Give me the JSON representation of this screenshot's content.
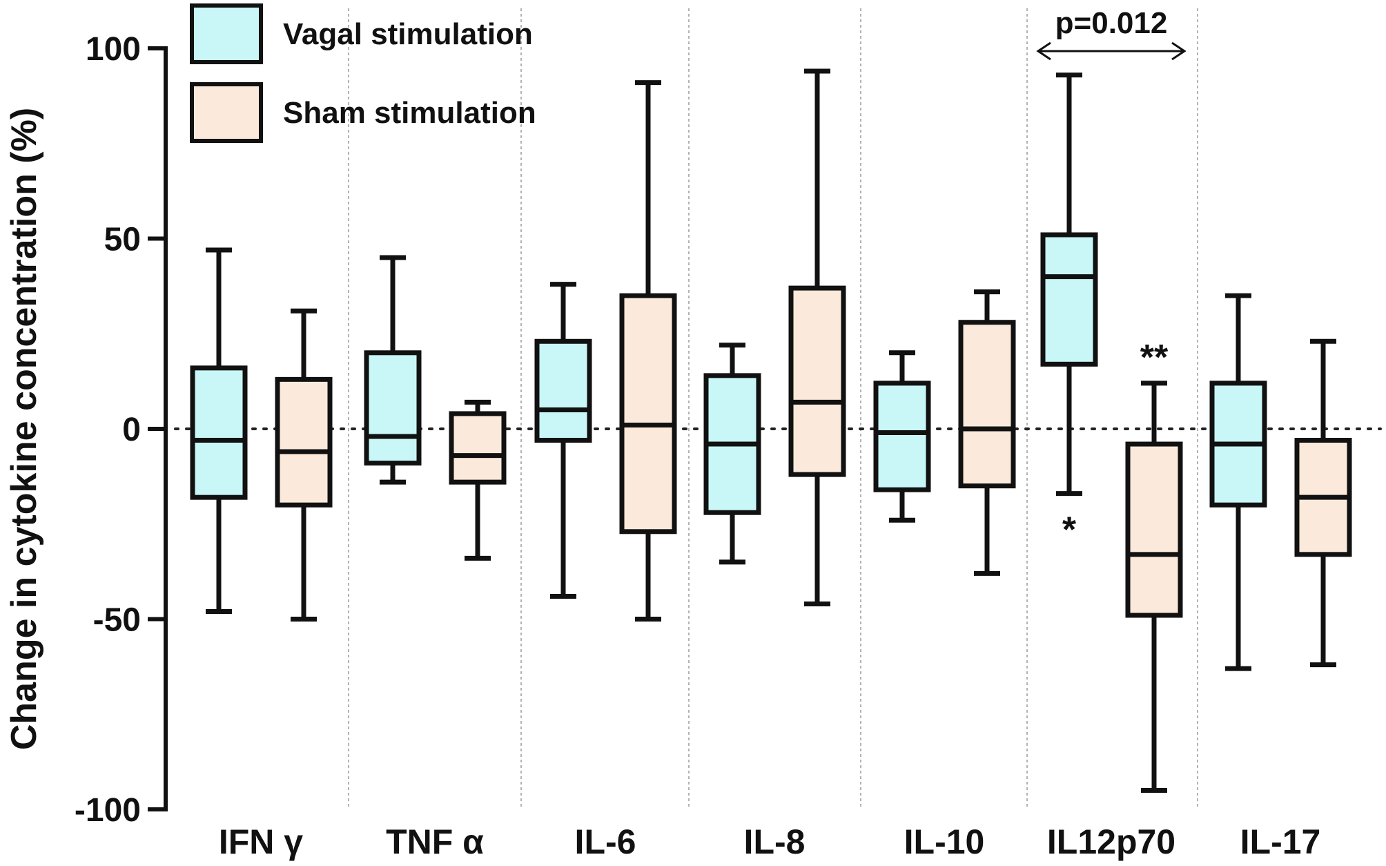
{
  "chart_data": {
    "type": "box",
    "title": "",
    "ylabel": "Change in cytokine concentration (%)",
    "xlabel": "",
    "ylim": [
      -100,
      100
    ],
    "yticks": [
      100,
      50,
      0,
      -50,
      -100
    ],
    "ytick_labels": [
      "100",
      "50",
      "0",
      "-50",
      "-100"
    ],
    "grid": false,
    "reference_line": {
      "y": 0,
      "style": "dotted"
    },
    "legend": {
      "position": "top-left",
      "entries": [
        {
          "name": "Vagal stimulation",
          "color": "#c9f7f7"
        },
        {
          "name": "Sham stimulation",
          "color": "#fbeadc"
        }
      ]
    },
    "categories": [
      "IFN γ",
      "TNF α",
      "IL-6",
      "IL-8",
      "IL-10",
      "IL12p70",
      "IL-17"
    ],
    "series": [
      {
        "name": "Vagal stimulation",
        "color": "#c9f7f7",
        "boxes": [
          {
            "min": -48,
            "q1": -18,
            "median": -3,
            "q3": 16,
            "max": 47
          },
          {
            "min": -14,
            "q1": -9,
            "median": -2,
            "q3": 20,
            "max": 45
          },
          {
            "min": -44,
            "q1": -3,
            "median": 5,
            "q3": 23,
            "max": 38
          },
          {
            "min": -35,
            "q1": -22,
            "median": -4,
            "q3": 14,
            "max": 22
          },
          {
            "min": -24,
            "q1": -16,
            "median": -1,
            "q3": 12,
            "max": 20
          },
          {
            "min": -17,
            "q1": 17,
            "median": 40,
            "q3": 51,
            "max": 93
          },
          {
            "min": -63,
            "q1": -20,
            "median": -4,
            "q3": 12,
            "max": 35
          }
        ]
      },
      {
        "name": "Sham stimulation",
        "color": "#fbeadc",
        "boxes": [
          {
            "min": -50,
            "q1": -20,
            "median": -6,
            "q3": 13,
            "max": 31
          },
          {
            "min": -34,
            "q1": -14,
            "median": -7,
            "q3": 4,
            "max": 7
          },
          {
            "min": -50,
            "q1": -27,
            "median": 1,
            "q3": 35,
            "max": 91
          },
          {
            "min": -46,
            "q1": -12,
            "median": 7,
            "q3": 37,
            "max": 94
          },
          {
            "min": -38,
            "q1": -15,
            "median": 0,
            "q3": 28,
            "max": 36
          },
          {
            "min": -95,
            "q1": -49,
            "median": -33,
            "q3": -4,
            "max": 12
          },
          {
            "min": -62,
            "q1": -33,
            "median": -18,
            "q3": -3,
            "max": 23
          }
        ]
      }
    ],
    "annotations": [
      {
        "text": "p=0.012",
        "category": "IL12p70",
        "type": "bracket-arrow"
      },
      {
        "text": "*",
        "category": "IL12p70",
        "series": "Vagal stimulation",
        "position": "below-whisker"
      },
      {
        "text": "**",
        "category": "IL12p70",
        "series": "Sham stimulation",
        "position": "above-whisker"
      }
    ]
  }
}
